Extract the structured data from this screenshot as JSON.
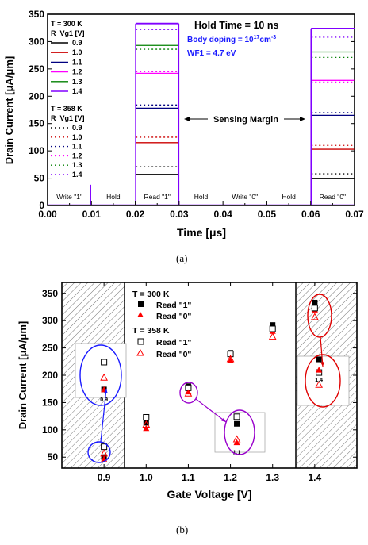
{
  "captions": [
    "(a)",
    "(b)"
  ],
  "chart_data": [
    {
      "type": "line",
      "xlabel": "Time [μs]",
      "ylabel": "Drain Current [μA/μm]",
      "xlim": [
        0.0,
        0.07
      ],
      "ylim": [
        0,
        350
      ],
      "xticks": [
        "0.00",
        "0.01",
        "0.02",
        "0.03",
        "0.04",
        "0.05",
        "0.06",
        "0.07"
      ],
      "yticks": [
        "0",
        "50",
        "100",
        "150",
        "200",
        "250",
        "300",
        "350"
      ],
      "annotations": {
        "hold_time": "Hold Time = 10 ns",
        "body_doping": "Body doping = 10",
        "body_doping_exp": "17",
        "body_doping_unit": "cm",
        "body_doping_unit_exp": "-3",
        "wf": "WF1 = 4.7 eV",
        "sensing_margin": "Sensing Margin"
      },
      "phases": [
        "Write \"1\"",
        "Hold",
        "Read \"1\"",
        "Hold",
        "Write \"0\"",
        "Hold",
        "Read \"0\""
      ],
      "legend": {
        "group1_title": "T = 300 K",
        "group2_title": "T = 358 K",
        "param": "R_Vg1 [V]",
        "entries": [
          "0.9",
          "1.0",
          "1.1",
          "1.2",
          "1.3",
          "1.4"
        ]
      },
      "colors": [
        "#000000",
        "#cc0000",
        "#000080",
        "#ff00ff",
        "#008000",
        "#8000ff"
      ],
      "series_300K": {
        "read1": [
          57,
          115,
          178,
          242,
          293,
          333
        ],
        "read0": [
          49,
          103,
          165,
          229,
          281,
          324
        ]
      },
      "series_358K": {
        "read1": [
          71,
          125,
          184,
          245,
          286,
          322
        ],
        "read0": [
          58,
          110,
          170,
          226,
          271,
          308
        ]
      }
    },
    {
      "type": "scatter",
      "xlabel": "Gate Voltage [V]",
      "ylabel": "Drain Current [μA/μm]",
      "xlim": [
        0.8,
        1.5
      ],
      "ylim": [
        30,
        370
      ],
      "xticks": [
        "0.9",
        "1.0",
        "1.1",
        "1.2",
        "1.3",
        "1.4"
      ],
      "yticks": [
        "50",
        "100",
        "150",
        "200",
        "250",
        "300",
        "350"
      ],
      "legend": {
        "group1_title": "T = 300 K",
        "group2_title": "T = 358 K",
        "read1": "Read \"1\"",
        "read0": "Read \"0\""
      },
      "x": [
        0.9,
        1.0,
        1.1,
        1.2,
        1.3,
        1.4
      ],
      "series": [
        {
          "name": "Read \"1\"",
          "temp": "T = 300 K",
          "values": [
            50,
            113,
            180,
            241,
            292,
            333
          ]
        },
        {
          "name": "Read \"0\"",
          "temp": "T = 300 K",
          "values": [
            47,
            103,
            170,
            228,
            281,
            320
          ]
        },
        {
          "name": "Read \"1\"",
          "temp": "T = 358 K",
          "values": [
            69,
            123,
            177,
            239,
            285,
            323
          ]
        },
        {
          "name": "Read \"0\"",
          "temp": "T = 358 K",
          "values": [
            57,
            110,
            167,
            230,
            271,
            307
          ]
        }
      ],
      "zoom_series": {
        "x09": {
          "label": "0.9",
          "read1_300": 174,
          "read0_300": 174,
          "read1_358": 224,
          "read0_358": 196
        },
        "x11": {
          "label": "1.1",
          "read1_300": 111,
          "read0_300": 77,
          "read1_358": 124,
          "read0_358": 83
        },
        "x14": {
          "label": "1.4",
          "read1_300": 229,
          "read0_300": 210,
          "read1_358": 205,
          "read0_358": 183
        }
      },
      "colors": {
        "read1": "#000000",
        "read0": "#ff0000",
        "ellipse_blue": "#1a1aff",
        "ellipse_purple": "#9900cc",
        "ellipse_red": "#e00000"
      }
    }
  ]
}
